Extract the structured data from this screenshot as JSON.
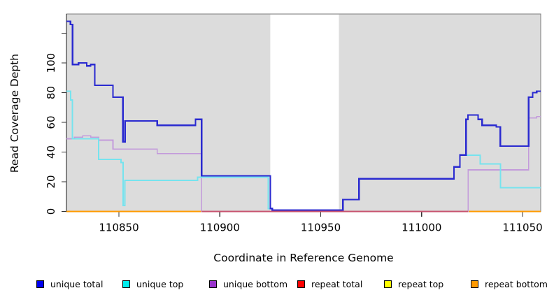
{
  "chart_data": {
    "type": "line",
    "subtype": "step-after",
    "title": "",
    "xlabel": "Coordinate in Reference Genome",
    "ylabel": "Read Coverage Depth",
    "x_ticks": [
      110850,
      110900,
      110950,
      111000,
      111050
    ],
    "y_ticks": [
      0,
      20,
      40,
      60,
      80,
      100
    ],
    "y_ticks_unlabeled": [
      120
    ],
    "xlim": [
      110824,
      111059
    ],
    "ylim": [
      0,
      133
    ],
    "grid": false,
    "legend_position": "bottom",
    "plot_background": "#dcdcdc",
    "page_background": "#ffffff",
    "gap_region": {
      "from": 110925,
      "to": 110959,
      "color": "#ffffff"
    },
    "zero_line_overlay": {
      "from": 110891,
      "to": 111023,
      "color": "#c8536f",
      "after_series": "unique bottom"
    },
    "series": [
      {
        "name": "repeat total",
        "line_color": "#e03030",
        "values": [
          [
            110824,
            0
          ],
          [
            111059,
            0
          ]
        ]
      },
      {
        "name": "repeat top",
        "line_color": "#ffe800",
        "values": [
          [
            110824,
            0
          ],
          [
            111059,
            0
          ]
        ]
      },
      {
        "name": "repeat bottom",
        "line_color": "#ff9a00",
        "values": [
          [
            110824,
            0
          ],
          [
            111059,
            0
          ]
        ]
      },
      {
        "name": "unique bottom",
        "line_color": "#c39bdb",
        "values": [
          [
            110824,
            49
          ],
          [
            110828,
            50
          ],
          [
            110832,
            51
          ],
          [
            110836,
            50
          ],
          [
            110840,
            48
          ],
          [
            110847,
            42
          ],
          [
            110869,
            39
          ],
          [
            110891,
            0
          ],
          [
            111023,
            28
          ],
          [
            111053,
            63
          ],
          [
            111057,
            64
          ],
          [
            111059,
            64
          ]
        ]
      },
      {
        "name": "unique top",
        "line_color": "#76e3ee",
        "values": [
          [
            110824,
            81
          ],
          [
            110826,
            75
          ],
          [
            110827,
            49
          ],
          [
            110840,
            35
          ],
          [
            110851,
            33
          ],
          [
            110852,
            4
          ],
          [
            110853,
            21
          ],
          [
            110889,
            23
          ],
          [
            110924,
            2
          ],
          [
            110926,
            1
          ],
          [
            110961,
            8
          ],
          [
            110969,
            22
          ],
          [
            111016,
            30
          ],
          [
            111019,
            38
          ],
          [
            111029,
            32
          ],
          [
            111039,
            16
          ],
          [
            111059,
            16
          ]
        ]
      },
      {
        "name": "unique total",
        "line_color": "#2a2ad0",
        "values": [
          [
            110824,
            128
          ],
          [
            110826,
            126
          ],
          [
            110827,
            99
          ],
          [
            110830,
            100
          ],
          [
            110834,
            98
          ],
          [
            110836,
            99
          ],
          [
            110838,
            85
          ],
          [
            110847,
            77
          ],
          [
            110852,
            47
          ],
          [
            110853,
            61
          ],
          [
            110869,
            58
          ],
          [
            110888,
            62
          ],
          [
            110891,
            24
          ],
          [
            110925,
            2
          ],
          [
            110926,
            1
          ],
          [
            110961,
            8
          ],
          [
            110969,
            22
          ],
          [
            111016,
            30
          ],
          [
            111019,
            38
          ],
          [
            111022,
            62
          ],
          [
            111023,
            65
          ],
          [
            111028,
            62
          ],
          [
            111030,
            58
          ],
          [
            111037,
            57
          ],
          [
            111039,
            44
          ],
          [
            111053,
            77
          ],
          [
            111055,
            80
          ],
          [
            111057,
            81
          ],
          [
            111059,
            81
          ]
        ]
      }
    ]
  },
  "legend": {
    "items": [
      {
        "label": "unique total",
        "color": "#0000f0"
      },
      {
        "label": "unique top",
        "color": "#00eeee"
      },
      {
        "label": "unique bottom",
        "color": "#9933cc"
      },
      {
        "label": "repeat total",
        "color": "#ff0000"
      },
      {
        "label": "repeat top",
        "color": "#ffff00"
      },
      {
        "label": "repeat bottom",
        "color": "#ff9900"
      }
    ]
  }
}
